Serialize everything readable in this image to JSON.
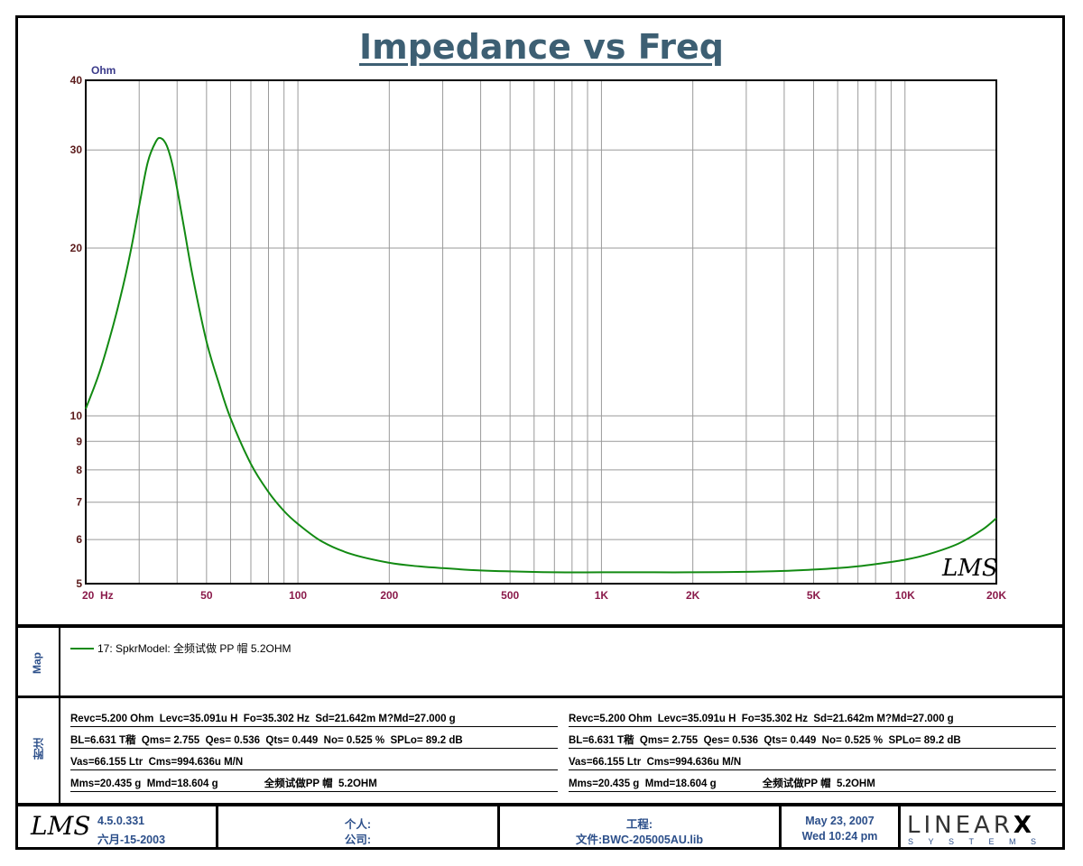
{
  "chart_data": {
    "type": "line",
    "title": "Impedance vs Freq",
    "ylabel": "Ohm",
    "xscale": "log",
    "yscale": "log",
    "xlim": [
      20,
      20000
    ],
    "ylim": [
      5,
      40
    ],
    "x_tick_labels": [
      "20  Hz",
      "50",
      "100",
      "200",
      "500",
      "1K",
      "2K",
      "5K",
      "10K",
      "20K"
    ],
    "x_tick_values": [
      20,
      50,
      100,
      200,
      500,
      1000,
      2000,
      5000,
      10000,
      20000
    ],
    "y_tick_labels": [
      "40",
      "30",
      "20",
      "10",
      "9",
      "8",
      "7",
      "6",
      "5"
    ],
    "y_tick_values": [
      40,
      30,
      20,
      10,
      9,
      8,
      7,
      6,
      5
    ],
    "grid": true,
    "series": [
      {
        "name": "17: SpkrModel: 全频试做   PP 帽   5.2OHM",
        "color": "#128a12",
        "x": [
          20,
          22,
          24,
          26,
          28,
          30,
          32,
          34,
          35.3,
          37,
          39,
          42,
          45,
          50,
          55,
          60,
          70,
          80,
          90,
          100,
          120,
          150,
          200,
          250,
          300,
          400,
          500,
          700,
          1000,
          1500,
          2000,
          3000,
          4000,
          5000,
          6000,
          7000,
          8000,
          10000,
          12000,
          15000,
          18000,
          20000
        ],
        "y": [
          10.3,
          11.8,
          13.8,
          16.3,
          19.5,
          23.8,
          28.5,
          31.0,
          31.5,
          30.5,
          27.5,
          22.0,
          17.8,
          13.6,
          11.4,
          9.9,
          8.2,
          7.3,
          6.75,
          6.4,
          5.95,
          5.65,
          5.45,
          5.37,
          5.33,
          5.28,
          5.26,
          5.24,
          5.24,
          5.24,
          5.24,
          5.25,
          5.27,
          5.3,
          5.33,
          5.37,
          5.42,
          5.52,
          5.65,
          5.9,
          6.25,
          6.55
        ]
      }
    ]
  },
  "watermark": "LMS",
  "map": {
    "side_label": "Map",
    "entry": "17: SpkrModel: 全频试做   PP 帽   5.2OHM",
    "line_color": "#128a12"
  },
  "notes": {
    "side_label": "附注",
    "left": [
      "Revc=5.200 Ohm  Levc=35.091u H  Fo=35.302 Hz  Sd=21.642m M?Md=27.000 g",
      "BL=6.631 T稭  Qms= 2.755  Qes= 0.536  Qts= 0.449  No= 0.525 %  SPLo= 89.2 dB",
      "Vas=66.155 Ltr  Cms=994.636u M/N",
      "Mms=20.435 g  Mmd=18.604 g                全频试做PP 帽  5.2OHM"
    ],
    "right": [
      "Revc=5.200 Ohm  Levc=35.091u H  Fo=35.302 Hz  Sd=21.642m M?Md=27.000 g",
      "BL=6.631 T稭  Qms= 2.755  Qes= 0.536  Qts= 0.449  No= 0.525 %  SPLo= 89.2 dB",
      "Vas=66.155 Ltr  Cms=994.636u M/N",
      "Mms=20.435 g  Mmd=18.604 g                全频试做PP 帽  5.2OHM"
    ]
  },
  "footer": {
    "logo": "LMS",
    "version": "4.5.0.331",
    "version_date": "六月-15-2003",
    "person_label": "个人:",
    "company_label": "公司:",
    "project_label": "工程:",
    "file_label": "文件:BWC-205005AU.lib",
    "date": "May 23, 2007",
    "time": "Wed 10:24 pm",
    "brand": "LINEAR",
    "brand_x": "X",
    "brand_sub": "SYSTEMS"
  }
}
